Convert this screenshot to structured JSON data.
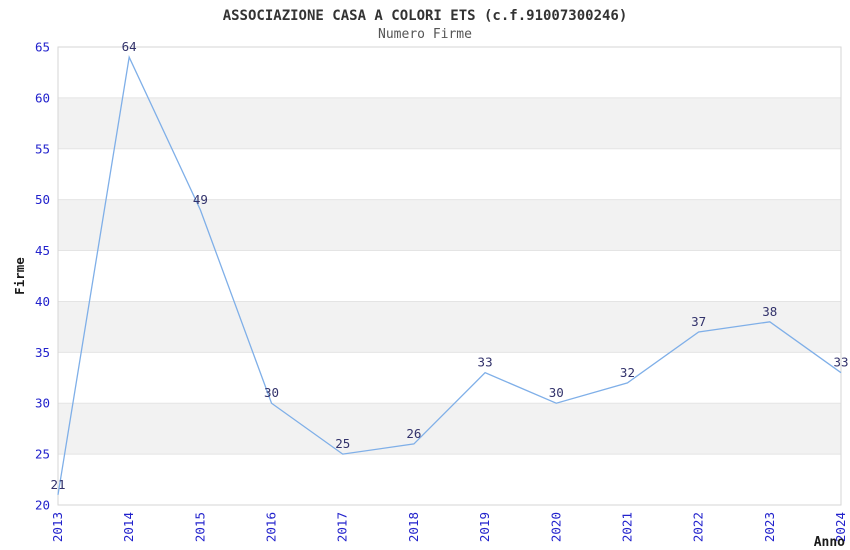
{
  "title": "ASSOCIAZIONE CASA A COLORI ETS (c.f.91007300246)",
  "subtitle": "Numero Firme",
  "colors": {
    "title": "#333333",
    "subtitle": "#555555",
    "axis_title": "#1a1a1a",
    "tick_label": "#2222cc",
    "data_label": "#32326b",
    "line": "#7fafe8",
    "band": "#f2f2f2",
    "grid": "#e4e4e4",
    "plot_border": "#d6d6d6",
    "background": "#ffffff"
  },
  "chart_data": {
    "type": "line",
    "title": "ASSOCIAZIONE CASA A COLORI ETS (c.f.91007300246)",
    "subtitle": "Numero Firme",
    "xlabel": "Anno",
    "ylabel": "Firme",
    "categories": [
      "2013",
      "2014",
      "2015",
      "2016",
      "2017",
      "2018",
      "2019",
      "2020",
      "2021",
      "2022",
      "2023",
      "2024"
    ],
    "values": [
      21,
      64,
      49,
      30,
      25,
      26,
      33,
      30,
      32,
      37,
      38,
      33
    ],
    "ylim": [
      20,
      65
    ],
    "ytick_step": 5,
    "yticks": [
      20,
      25,
      30,
      35,
      40,
      45,
      50,
      55,
      60,
      65
    ],
    "grid": "horizontal alternating bands, light gray",
    "legend": "none",
    "data_labels_shown": true,
    "xtick_rotation_deg": 90
  }
}
